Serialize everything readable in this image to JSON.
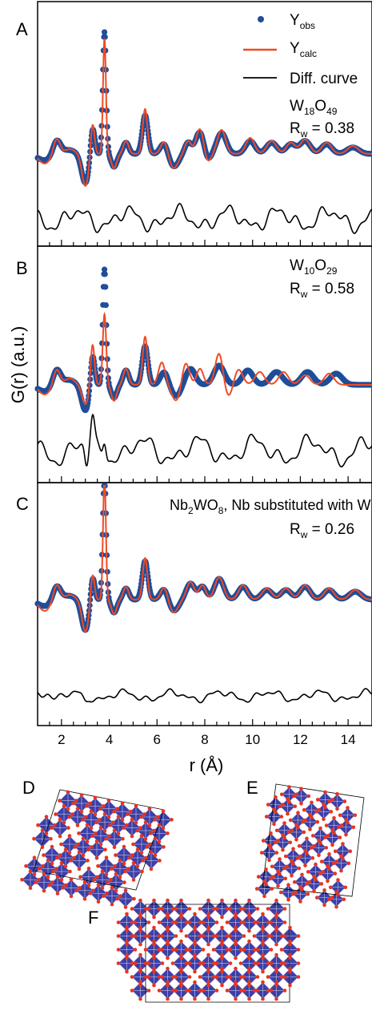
{
  "figure": {
    "panel_labels": [
      "A",
      "B",
      "C",
      "D",
      "E",
      "F"
    ],
    "ylabel": "G(r) (a.u.)",
    "xlabel": "r (Å)"
  },
  "legend": {
    "obs": {
      "main": "Y",
      "sub": "obs"
    },
    "calc": {
      "main": "Y",
      "sub": "calc"
    },
    "diff": "Diff. curve"
  },
  "colors": {
    "obs": "#1f4e9a",
    "calc": "#f04a24",
    "diff": "#000000",
    "polyhedra": "#3b3fa6",
    "atoms": "#e8331e"
  },
  "panels": [
    {
      "letter": "A",
      "formula": [
        [
          "W",
          ""
        ],
        [
          "18",
          "sub"
        ],
        [
          "O",
          ""
        ],
        [
          "49",
          "sub"
        ]
      ],
      "rw": {
        "label": "R",
        "sub": "w",
        "value": " = 0.38"
      }
    },
    {
      "letter": "B",
      "formula": [
        [
          "W",
          ""
        ],
        [
          "10",
          "sub"
        ],
        [
          "O",
          ""
        ],
        [
          "29",
          "sub"
        ]
      ],
      "rw": {
        "label": "R",
        "sub": "w",
        "value": " = 0.58"
      }
    },
    {
      "letter": "C",
      "formula": [
        [
          "Nb",
          ""
        ],
        [
          "2",
          "sub"
        ],
        [
          "WO",
          ""
        ],
        [
          "8",
          "sub"
        ],
        [
          ", Nb substituted with W",
          ""
        ]
      ],
      "rw": {
        "label": "R",
        "sub": "w",
        "value": " = 0.26"
      }
    }
  ],
  "chart_data": {
    "type": "line",
    "title": "",
    "xlabel": "r (Å)",
    "ylabel": "G(r) (a.u.)",
    "xlim": [
      1.0,
      15.0
    ],
    "xticks": [
      2,
      4,
      6,
      8,
      10,
      12,
      14
    ],
    "grid": false,
    "legend_position": "top-right",
    "panels": [
      {
        "panel": "A",
        "series": [
          {
            "name": "Y_obs",
            "style": "markers",
            "peaks": [
              [
                1.8,
                0.45,
                0.16
              ],
              [
                2.3,
                0.12,
                0.25
              ],
              [
                3.3,
                0.9,
                0.09
              ],
              [
                3.8,
                3.8,
                0.07
              ],
              [
                4.7,
                0.35,
                0.12
              ],
              [
                5.5,
                1.2,
                0.12
              ],
              [
                6.3,
                0.35,
                0.16
              ],
              [
                7.3,
                0.35,
                0.14
              ],
              [
                7.8,
                0.7,
                0.18
              ],
              [
                8.7,
                0.65,
                0.2
              ],
              [
                9.9,
                0.4,
                0.2
              ],
              [
                10.8,
                0.35,
                0.22
              ],
              [
                11.6,
                0.3,
                0.2
              ],
              [
                12.2,
                0.4,
                0.22
              ],
              [
                13.1,
                0.3,
                0.22
              ],
              [
                14.2,
                0.2,
                0.25
              ]
            ],
            "dips": [
              [
                3.0,
                -0.9,
                0.16
              ],
              [
                1.3,
                -0.2,
                0.3
              ],
              [
                4.2,
                -0.4,
                0.12
              ],
              [
                6.7,
                -0.4,
                0.2
              ],
              [
                8.1,
                -0.25,
                0.15
              ]
            ]
          },
          {
            "name": "Y_calc",
            "style": "line",
            "peaks": [
              [
                1.8,
                0.5,
                0.14
              ],
              [
                2.35,
                0.15,
                0.2
              ],
              [
                3.3,
                1.0,
                0.08
              ],
              [
                3.8,
                3.6,
                0.06
              ],
              [
                4.7,
                0.4,
                0.11
              ],
              [
                5.5,
                1.4,
                0.1
              ],
              [
                6.3,
                0.4,
                0.14
              ],
              [
                7.3,
                0.4,
                0.13
              ],
              [
                7.8,
                0.8,
                0.16
              ],
              [
                8.7,
                0.75,
                0.17
              ],
              [
                9.9,
                0.5,
                0.18
              ],
              [
                10.8,
                0.4,
                0.2
              ],
              [
                11.6,
                0.35,
                0.18
              ],
              [
                12.2,
                0.45,
                0.2
              ],
              [
                13.1,
                0.35,
                0.2
              ],
              [
                14.2,
                0.25,
                0.22
              ]
            ],
            "dips": [
              [
                3.0,
                -1.0,
                0.14
              ],
              [
                1.3,
                -0.3,
                0.25
              ],
              [
                4.2,
                -0.45,
                0.11
              ],
              [
                6.7,
                -0.45,
                0.18
              ],
              [
                8.1,
                -0.3,
                0.14
              ]
            ]
          },
          {
            "name": "Diff. curve",
            "style": "line",
            "baseline_offset": -2.3,
            "wave": [
              [
                0.45,
                1.35,
                0
              ],
              [
                0.25,
                2.9,
                1.1
              ],
              [
                0.18,
                5.3,
                2.2
              ]
            ]
          }
        ]
      },
      {
        "panel": "B",
        "series": [
          {
            "name": "Y_obs",
            "style": "markers",
            "peaks": [
              [
                1.8,
                0.5,
                0.16
              ],
              [
                2.3,
                0.15,
                0.25
              ],
              [
                3.3,
                1.0,
                0.09
              ],
              [
                3.8,
                3.6,
                0.07
              ],
              [
                4.7,
                0.45,
                0.12
              ],
              [
                5.5,
                1.2,
                0.12
              ],
              [
                6.3,
                0.4,
                0.16
              ],
              [
                7.4,
                0.5,
                0.2
              ],
              [
                8.6,
                0.6,
                0.22
              ],
              [
                9.8,
                0.45,
                0.22
              ],
              [
                11.0,
                0.4,
                0.25
              ],
              [
                12.3,
                0.4,
                0.25
              ],
              [
                13.5,
                0.35,
                0.25
              ]
            ],
            "dips": [
              [
                3.0,
                -0.8,
                0.16
              ],
              [
                1.3,
                -0.2,
                0.3
              ],
              [
                4.2,
                -0.4,
                0.12
              ],
              [
                6.8,
                -0.35,
                0.2
              ]
            ]
          },
          {
            "name": "Y_calc",
            "style": "line",
            "peaks": [
              [
                1.8,
                0.5,
                0.14
              ],
              [
                2.35,
                0.2,
                0.2
              ],
              [
                3.3,
                1.3,
                0.08
              ],
              [
                3.8,
                2.2,
                0.07
              ],
              [
                4.7,
                0.5,
                0.11
              ],
              [
                5.5,
                1.5,
                0.1
              ],
              [
                6.2,
                0.7,
                0.14
              ],
              [
                7.2,
                0.7,
                0.15
              ],
              [
                7.8,
                0.5,
                0.14
              ],
              [
                8.6,
                1.0,
                0.16
              ],
              [
                9.4,
                0.5,
                0.18
              ],
              [
                10.3,
                0.4,
                0.2
              ],
              [
                11.3,
                0.4,
                0.2
              ],
              [
                12.2,
                0.3,
                0.2
              ],
              [
                13.2,
                0.35,
                0.2
              ]
            ],
            "dips": [
              [
                3.0,
                -0.6,
                0.14
              ],
              [
                1.3,
                -0.3,
                0.25
              ],
              [
                4.2,
                -0.5,
                0.11
              ],
              [
                6.8,
                -0.5,
                0.18
              ],
              [
                9.0,
                -0.4,
                0.18
              ]
            ]
          },
          {
            "name": "Diff. curve",
            "style": "line",
            "baseline_offset": -2.2,
            "wave": [
              [
                0.55,
                1.2,
                0
              ],
              [
                0.3,
                2.6,
                0.8
              ],
              [
                0.2,
                4.9,
                1.9
              ]
            ],
            "spikes": [
              [
                3.3,
                1.5,
                0.08
              ],
              [
                3.05,
                -1.2,
                0.08
              ],
              [
                3.8,
                1.0,
                0.07
              ]
            ]
          }
        ]
      },
      {
        "panel": "C",
        "series": [
          {
            "name": "Y_obs",
            "style": "markers",
            "peaks": [
              [
                1.8,
                0.45,
                0.16
              ],
              [
                2.3,
                0.12,
                0.25
              ],
              [
                3.3,
                0.8,
                0.09
              ],
              [
                3.8,
                3.9,
                0.07
              ],
              [
                4.7,
                0.35,
                0.12
              ],
              [
                5.5,
                1.2,
                0.12
              ],
              [
                6.3,
                0.35,
                0.16
              ],
              [
                7.4,
                0.5,
                0.18
              ],
              [
                7.9,
                0.4,
                0.16
              ],
              [
                8.6,
                0.65,
                0.2
              ],
              [
                9.6,
                0.4,
                0.2
              ],
              [
                10.6,
                0.3,
                0.22
              ],
              [
                11.4,
                0.3,
                0.22
              ],
              [
                12.2,
                0.4,
                0.22
              ],
              [
                13.2,
                0.3,
                0.22
              ],
              [
                14.3,
                0.25,
                0.25
              ]
            ],
            "dips": [
              [
                3.0,
                -0.95,
                0.16
              ],
              [
                1.3,
                -0.2,
                0.3
              ],
              [
                4.2,
                -0.4,
                0.12
              ],
              [
                6.7,
                -0.35,
                0.2
              ]
            ]
          },
          {
            "name": "Y_calc",
            "style": "line",
            "peaks": [
              [
                1.8,
                0.5,
                0.14
              ],
              [
                2.35,
                0.15,
                0.2
              ],
              [
                3.3,
                0.85,
                0.08
              ],
              [
                3.8,
                3.8,
                0.06
              ],
              [
                4.7,
                0.4,
                0.11
              ],
              [
                5.5,
                1.3,
                0.1
              ],
              [
                6.3,
                0.4,
                0.14
              ],
              [
                7.4,
                0.55,
                0.16
              ],
              [
                7.9,
                0.45,
                0.14
              ],
              [
                8.6,
                0.7,
                0.18
              ],
              [
                9.6,
                0.45,
                0.18
              ],
              [
                10.6,
                0.35,
                0.2
              ],
              [
                11.4,
                0.35,
                0.2
              ],
              [
                12.2,
                0.45,
                0.2
              ],
              [
                13.2,
                0.35,
                0.2
              ],
              [
                14.3,
                0.3,
                0.22
              ]
            ],
            "dips": [
              [
                3.0,
                -1.0,
                0.14
              ],
              [
                1.3,
                -0.35,
                0.25
              ],
              [
                4.2,
                -0.45,
                0.11
              ],
              [
                6.7,
                -0.4,
                0.18
              ]
            ]
          },
          {
            "name": "Diff. curve",
            "style": "line",
            "baseline_offset": -2.0,
            "wave": [
              [
                0.22,
                1.4,
                0
              ],
              [
                0.12,
                3.1,
                1.4
              ],
              [
                0.08,
                5.6,
                2.5
              ]
            ],
            "spikes": [
              [
                1.4,
                0.35,
                0.15
              ],
              [
                3.0,
                -0.4,
                0.1
              ]
            ]
          }
        ]
      }
    ],
    "structures": [
      {
        "panel": "D",
        "type": "polyhedral-structure"
      },
      {
        "panel": "E",
        "type": "polyhedral-structure"
      },
      {
        "panel": "F",
        "type": "polyhedral-structure"
      }
    ]
  }
}
